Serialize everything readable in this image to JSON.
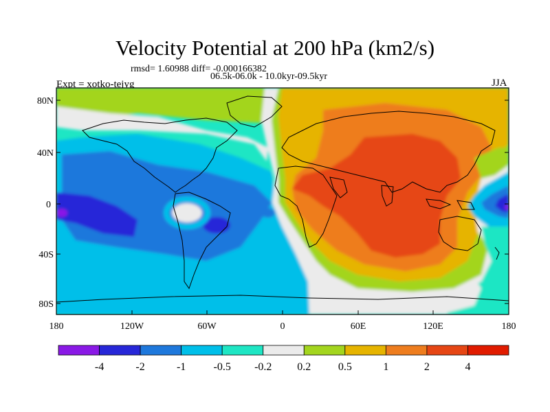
{
  "title": "Velocity Potential at 200 hPa (km2/s)",
  "stats": "rmsd= 1.60988 diff= -0.000166382",
  "period": "06.5k-06.0k - 10.0kyr-09.5kyr",
  "experiment": "Expt = xotko-tejyg",
  "season": "JJA",
  "map": {
    "lat_ticks": [
      "80N",
      "40N",
      "0",
      "40S",
      "80S"
    ],
    "lon_ticks": [
      "180",
      "120W",
      "60W",
      "0",
      "60E",
      "120E",
      "180"
    ]
  },
  "colorbar": {
    "colors": [
      "#8a19e6",
      "#2727d8",
      "#1e78dc",
      "#00bfe9",
      "#1ee6c4",
      "#ebebeb",
      "#a3d51e",
      "#e6b400",
      "#ee7d1e",
      "#e64614",
      "#e11b00"
    ],
    "labels": [
      "-4",
      "-2",
      "-1",
      "-0.5",
      "-0.2",
      "0.2",
      "0.5",
      "1",
      "2",
      "4"
    ]
  }
}
